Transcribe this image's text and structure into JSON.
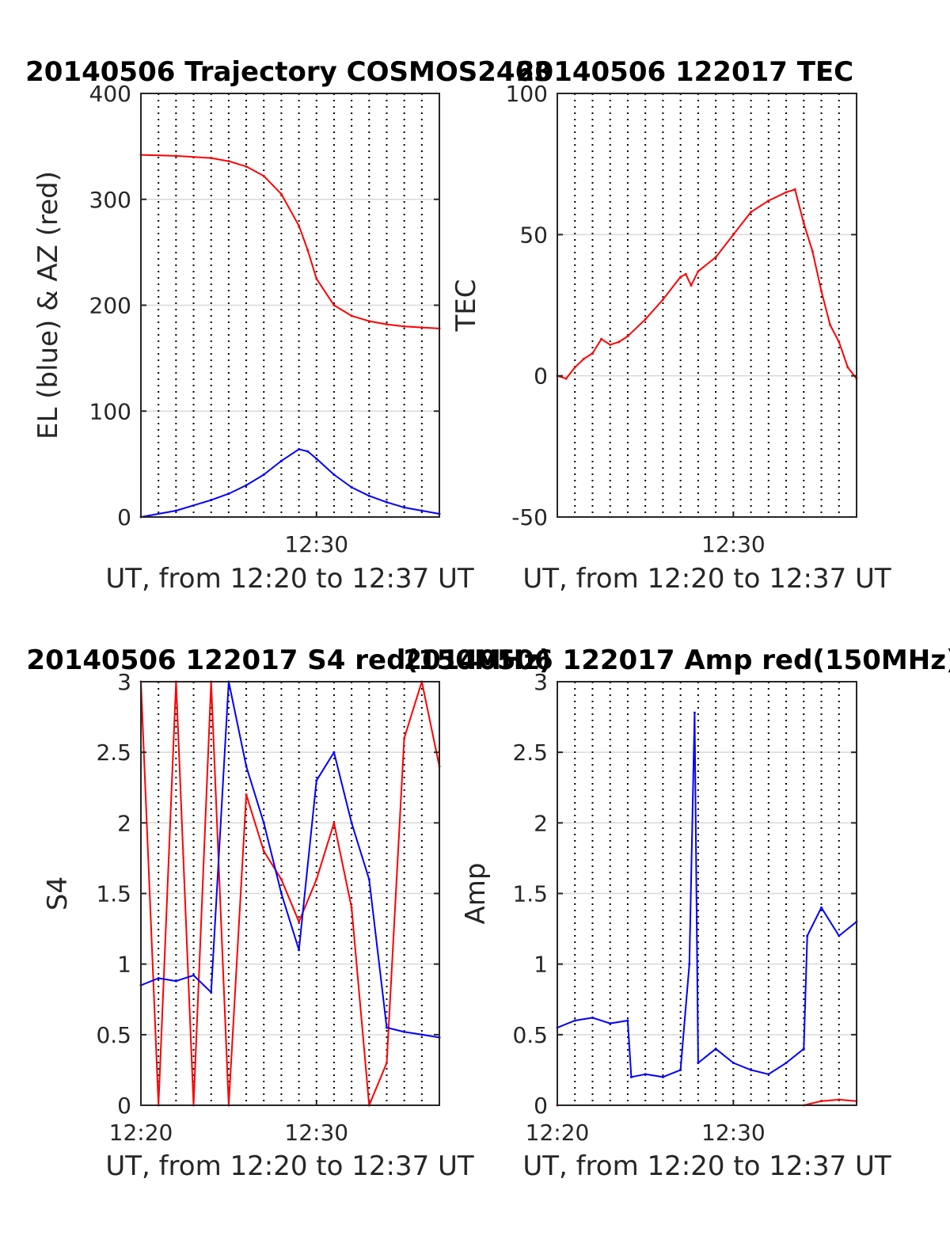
{
  "colors": {
    "az": "#ff0000",
    "el": "#0000ff",
    "tec": "#ff0000",
    "red_series": "#ff0000",
    "blue_series": "#0000ff",
    "axes": "#262626",
    "grid": "#d9d9d9"
  },
  "chart_data": [
    {
      "id": "trajectory",
      "type": "line",
      "title": "20140506 Trajectory COSMOS2463",
      "xlabel": "UT, from 12:20 to 12:37 UT",
      "ylabel": "EL (blue) & AZ (red)",
      "xlim": [
        "12:20",
        "12:37"
      ],
      "ylim": [
        0,
        400
      ],
      "yticks": [
        "0",
        "100",
        "200",
        "300",
        "400"
      ],
      "xticks": [
        {
          "t": "12:30",
          "label": "12:30"
        }
      ],
      "grid": "on",
      "series": [
        {
          "color": "red",
          "x": [
            "12:20",
            "12:22",
            "12:24",
            "12:25",
            "12:26",
            "12:27",
            "12:28",
            "12:29",
            "12:29.5",
            "12:30",
            "12:31",
            "12:32",
            "12:33",
            "12:34",
            "12:35",
            "12:36",
            "12:37"
          ],
          "y": [
            342,
            341,
            339,
            336,
            331,
            322,
            305,
            275,
            252,
            225,
            200,
            190,
            185,
            182,
            180,
            179,
            178
          ]
        },
        {
          "color": "blue",
          "x": [
            "12:20",
            "12:22",
            "12:24",
            "12:25",
            "12:26",
            "12:27",
            "12:28",
            "12:29",
            "12:29.5",
            "12:30",
            "12:31",
            "12:32",
            "12:33",
            "12:34",
            "12:35",
            "12:36",
            "12:37"
          ],
          "y": [
            0,
            6,
            16,
            22,
            30,
            40,
            53,
            64,
            62,
            55,
            40,
            28,
            20,
            14,
            9,
            6,
            3
          ]
        }
      ]
    },
    {
      "id": "tec",
      "type": "line",
      "title": "20140506 122017 TEC",
      "xlabel": "UT, from 12:20 to 12:37 UT",
      "ylabel": "TEC",
      "xlim": [
        "12:20",
        "12:37"
      ],
      "ylim": [
        -50,
        100
      ],
      "yticks": [
        "-50",
        "0",
        "50",
        "100"
      ],
      "xticks": [
        {
          "t": "12:30",
          "label": "12:30"
        }
      ],
      "grid": "on",
      "series": [
        {
          "color": "red",
          "x": [
            "12:20",
            "12:20.5",
            "12:21",
            "12:21.5",
            "12:22",
            "12:22.5",
            "12:23",
            "12:23.5",
            "12:24",
            "12:25",
            "12:26",
            "12:27",
            "12:27.3",
            "12:27.6",
            "12:28",
            "12:29",
            "12:30",
            "12:31",
            "12:32",
            "12:33",
            "12:33.5",
            "12:34",
            "12:34.5",
            "12:35",
            "12:35.5",
            "12:36",
            "12:36.5",
            "12:37"
          ],
          "y": [
            0,
            -1,
            3,
            6,
            8,
            13,
            11,
            12,
            14,
            20,
            27,
            35,
            36,
            32,
            37,
            42,
            50,
            58,
            62,
            65,
            66,
            54,
            44,
            30,
            18,
            12,
            3,
            -1
          ]
        }
      ]
    },
    {
      "id": "s4",
      "type": "line",
      "title": "20140506 122017 S4 red(150MHz)",
      "xlabel": "UT, from 12:20 to 12:37 UT",
      "ylabel": "S4",
      "xlim": [
        "12:20",
        "12:37"
      ],
      "ylim": [
        0,
        3
      ],
      "yticks": [
        "0",
        "0.5",
        "1",
        "1.5",
        "2",
        "2.5",
        "3"
      ],
      "xticks": [
        {
          "t": "12:20",
          "label": "12:20"
        },
        {
          "t": "12:30",
          "label": "12:30"
        }
      ],
      "grid": "on",
      "series": [
        {
          "color": "red",
          "x": [
            "12:20",
            "12:21",
            "12:22",
            "12:23",
            "12:24",
            "12:25",
            "12:26",
            "12:27",
            "12:28",
            "12:29",
            "12:30",
            "12:31",
            "12:32",
            "12:33",
            "12:34",
            "12:35",
            "12:36",
            "12:37"
          ],
          "y": [
            3.0,
            0.0,
            3.0,
            0.0,
            3.0,
            0.0,
            2.2,
            1.8,
            1.6,
            1.3,
            1.6,
            2.0,
            1.4,
            0.0,
            0.3,
            2.6,
            3.0,
            2.4
          ]
        },
        {
          "color": "blue",
          "x": [
            "12:20",
            "12:21",
            "12:22",
            "12:23",
            "12:24",
            "12:25",
            "12:26",
            "12:27",
            "12:28",
            "12:29",
            "12:30",
            "12:31",
            "12:32",
            "12:33",
            "12:34",
            "12:35",
            "12:36",
            "12:37"
          ],
          "y": [
            0.85,
            0.9,
            0.88,
            0.92,
            0.8,
            3.0,
            2.4,
            2.0,
            1.5,
            1.1,
            2.3,
            2.5,
            2.0,
            1.6,
            0.55,
            0.52,
            0.5,
            0.48
          ]
        }
      ]
    },
    {
      "id": "amp",
      "type": "line",
      "title": "20140506 122017 Amp red(150MHz)",
      "xlabel": "UT, from 12:20 to 12:37 UT",
      "ylabel": "Amp",
      "xlim": [
        "12:20",
        "12:37"
      ],
      "ylim": [
        0,
        3
      ],
      "yticks": [
        "0",
        "0.5",
        "1",
        "1.5",
        "2",
        "2.5",
        "3"
      ],
      "xticks": [
        {
          "t": "12:20",
          "label": "12:20"
        },
        {
          "t": "12:30",
          "label": "12:30"
        }
      ],
      "grid": "on",
      "series": [
        {
          "color": "blue",
          "x": [
            "12:20",
            "12:21",
            "12:22",
            "12:23",
            "12:24",
            "12:24.2",
            "12:25",
            "12:26",
            "12:27",
            "12:27.5",
            "12:27.8",
            "12:28",
            "12:29",
            "12:30",
            "12:31",
            "12:32",
            "12:33",
            "12:34",
            "12:34.2",
            "12:35",
            "12:36",
            "12:37"
          ],
          "y": [
            0.55,
            0.6,
            0.62,
            0.58,
            0.6,
            0.2,
            0.22,
            0.2,
            0.25,
            1.0,
            2.78,
            0.3,
            0.4,
            0.3,
            0.25,
            0.22,
            0.3,
            0.4,
            1.2,
            1.4,
            1.2,
            1.3
          ]
        },
        {
          "color": "red",
          "x": [
            "12:20",
            "12:34",
            "12:35",
            "12:36",
            "12:37"
          ],
          "y": [
            0.0,
            0.0,
            0.03,
            0.04,
            0.03
          ]
        }
      ]
    }
  ]
}
